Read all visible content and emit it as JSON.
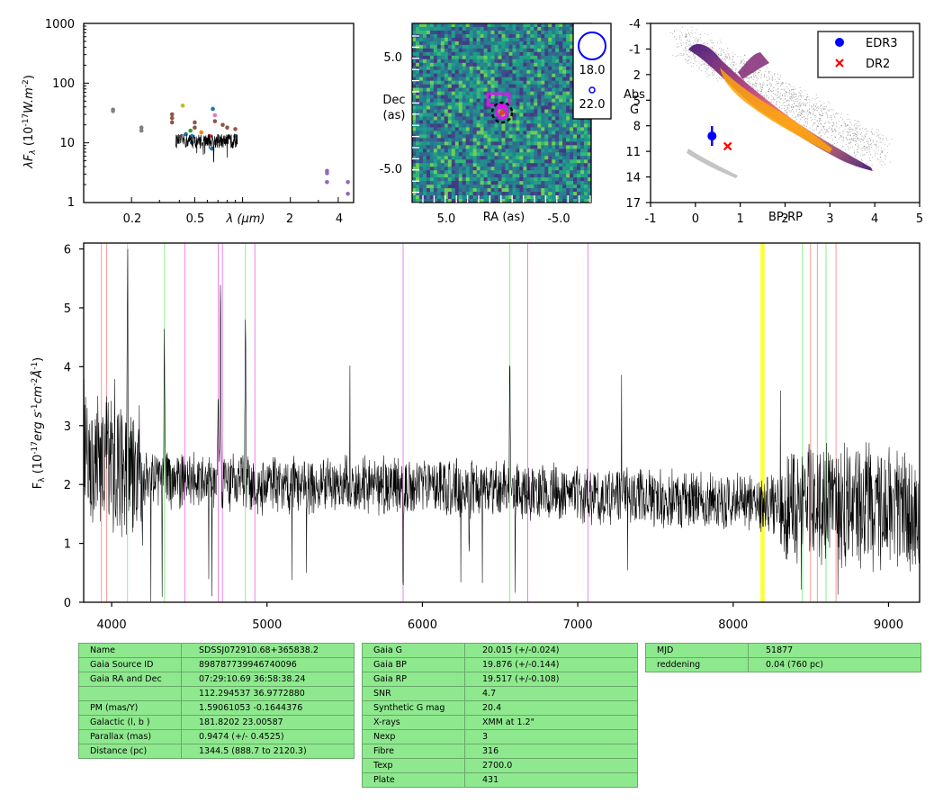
{
  "sed": {
    "ylabel_text": "λF",
    "ylabel_sub": "λ",
    "ylabel_units": " (10",
    "ylabel_exp": "-17",
    "ylabel_units2": "W.m",
    "ylabel_exp2": "-2",
    "ylabel_close": ")",
    "xlabel": "λ (μm)",
    "y_ticks": [
      "1",
      "10",
      "100",
      "1000"
    ],
    "x_ticks": [
      "0.2",
      "0.5",
      "2",
      "4"
    ]
  },
  "image_panel": {
    "ylabel_line1": "Dec",
    "ylabel_line2": "(as)",
    "xlabel": "RA (as)",
    "y_ticks": [
      "5.0",
      "-5.0"
    ],
    "x_ticks": [
      "5.0",
      "-5.0"
    ],
    "scale_labels": [
      "18.0",
      "22.0"
    ]
  },
  "hrd": {
    "ylabel_line1": "Abs",
    "ylabel_line2": "G",
    "xlabel": "BP-RP",
    "y_ticks": [
      "-4",
      "-1",
      "2",
      "5",
      "8",
      "11",
      "14",
      "17"
    ],
    "x_ticks": [
      "-1",
      "0",
      "1",
      "2",
      "3",
      "4",
      "5"
    ],
    "legend": [
      "EDR3",
      "DR2"
    ],
    "points": [
      {
        "name": "EDR3",
        "bp_rp": 0.37,
        "abs_g": 9.2,
        "color": "#0000ff"
      },
      {
        "name": "DR2",
        "bp_rp": 0.72,
        "abs_g": 10.4,
        "color": "#ff0000"
      }
    ]
  },
  "spectrum": {
    "ylabel_pre": "F",
    "ylabel_sub": "λ",
    "ylabel_mid": " (10",
    "ylabel_exp": "-17",
    "ylabel_unit1": "erg s",
    "ylabel_exp1": "-1",
    "ylabel_unit2": "cm",
    "ylabel_exp2": "-2",
    "ylabel_unit3": "Å",
    "ylabel_exp3": "-1",
    "ylabel_close": ")",
    "y_ticks": [
      "0",
      "1",
      "2",
      "3",
      "4",
      "5",
      "6"
    ],
    "x_ticks": [
      "4000",
      "5000",
      "6000",
      "7000",
      "8000",
      "9000"
    ]
  },
  "chart_data": [
    {
      "type": "scatter",
      "xscale": "log",
      "yscale": "log",
      "xlim": [
        0.1,
        5.0
      ],
      "ylim": [
        1,
        1000
      ],
      "xlabel": "λ (μm)",
      "ylabel": "λFλ (10^-17 W.m^-2)",
      "points": [
        {
          "x": 0.153,
          "y": 36,
          "color": "#808080"
        },
        {
          "x": 0.153,
          "y": 34,
          "color": "#808080"
        },
        {
          "x": 0.231,
          "y": 18,
          "color": "#808080"
        },
        {
          "x": 0.231,
          "y": 16,
          "color": "#808080"
        },
        {
          "x": 0.36,
          "y": 30,
          "color": "#8c564b"
        },
        {
          "x": 0.36,
          "y": 26,
          "color": "#8c564b"
        },
        {
          "x": 0.36,
          "y": 22,
          "color": "#8c564b"
        },
        {
          "x": 0.42,
          "y": 42,
          "color": "#bcbd22"
        },
        {
          "x": 0.44,
          "y": 14,
          "color": "#1f77b4"
        },
        {
          "x": 0.47,
          "y": 16,
          "color": "#2ca02c"
        },
        {
          "x": 0.48,
          "y": 13,
          "color": "#1f77b4"
        },
        {
          "x": 0.5,
          "y": 22,
          "color": "#8c564b"
        },
        {
          "x": 0.5,
          "y": 18,
          "color": "#8c564b"
        },
        {
          "x": 0.55,
          "y": 15,
          "color": "#ff7f0e"
        },
        {
          "x": 0.62,
          "y": 13,
          "color": "#d62728"
        },
        {
          "x": 0.65,
          "y": 37,
          "color": "#1f77b4"
        },
        {
          "x": 0.67,
          "y": 29,
          "color": "#e377c2"
        },
        {
          "x": 0.67,
          "y": 23,
          "color": "#8c564b"
        },
        {
          "x": 0.75,
          "y": 20,
          "color": "#8c564b"
        },
        {
          "x": 0.8,
          "y": 18,
          "color": "#8c564b"
        },
        {
          "x": 0.9,
          "y": 17,
          "color": "#8c564b"
        },
        {
          "x": 0.48,
          "y": 10,
          "color": "#1f77b4"
        },
        {
          "x": 0.64,
          "y": 8,
          "color": "#1f77b4"
        },
        {
          "x": 0.77,
          "y": 11,
          "color": "#1f77b4"
        },
        {
          "x": 0.9,
          "y": 13,
          "color": "#1f77b4"
        },
        {
          "x": 3.4,
          "y": 3.4,
          "color": "#9467bd"
        },
        {
          "x": 3.4,
          "y": 3.1,
          "color": "#9467bd"
        },
        {
          "x": 3.4,
          "y": 2.2,
          "color": "#9467bd"
        },
        {
          "x": 4.6,
          "y": 2.2,
          "color": "#9467bd"
        },
        {
          "x": 4.6,
          "y": 1.4,
          "color": "#9467bd"
        }
      ]
    },
    {
      "type": "line",
      "xlim": [
        3820,
        9200
      ],
      "ylim": [
        0,
        6.1
      ],
      "xlabel": "",
      "ylabel": "Fλ (10^-17 erg s^-1 cm^-2 Å^-1)",
      "continuum": [
        [
          3820,
          2.6
        ],
        [
          3900,
          2.5
        ],
        [
          4000,
          2.3
        ],
        [
          4200,
          2.15
        ],
        [
          4500,
          2.05
        ],
        [
          5000,
          2.0
        ],
        [
          5500,
          2.0
        ],
        [
          6000,
          1.95
        ],
        [
          6500,
          1.9
        ],
        [
          7000,
          1.85
        ],
        [
          7500,
          1.75
        ],
        [
          8000,
          1.7
        ],
        [
          8500,
          1.65
        ],
        [
          9000,
          1.6
        ],
        [
          9200,
          1.55
        ]
      ],
      "emission": [
        {
          "x": 4102,
          "peak": 6.2
        },
        {
          "x": 4340,
          "peak": 5.5
        },
        {
          "x": 4686,
          "peak": 4.2
        },
        {
          "x": 4700,
          "peak": 6.0
        },
        {
          "x": 4861,
          "peak": 5.4
        },
        {
          "x": 5876,
          "peak": 0.1
        },
        {
          "x": 6563,
          "peak": 4.6
        },
        {
          "x": 6300,
          "peak": 0.8
        }
      ],
      "lines": [
        {
          "x": 3934,
          "color": "#ff9999"
        },
        {
          "x": 3968,
          "color": "#ff9999"
        },
        {
          "x": 4102,
          "color": "#90ee90"
        },
        {
          "x": 4340,
          "color": "#90ee90"
        },
        {
          "x": 4471,
          "color": "#ee82ee"
        },
        {
          "x": 4686,
          "color": "#ee82ee"
        },
        {
          "x": 4713,
          "color": "#ee82ee"
        },
        {
          "x": 4861,
          "color": "#90ee90"
        },
        {
          "x": 4922,
          "color": "#ee82ee"
        },
        {
          "x": 5876,
          "color": "#ee82ee"
        },
        {
          "x": 6563,
          "color": "#90ee90"
        },
        {
          "x": 6678,
          "color": "#ee82ee"
        },
        {
          "x": 7065,
          "color": "#ee82ee"
        },
        {
          "x": 8183,
          "color": "#ffff33"
        },
        {
          "x": 8195,
          "color": "#ffff33"
        },
        {
          "x": 8446,
          "color": "#90ee90"
        },
        {
          "x": 8498,
          "color": "#ff9999"
        },
        {
          "x": 8542,
          "color": "#ff9999"
        },
        {
          "x": 8598,
          "color": "#90ee90"
        },
        {
          "x": 8662,
          "color": "#ff9999"
        }
      ]
    }
  ],
  "tables": [
    {
      "rows": [
        [
          "Name",
          "SDSSJ072910.68+365838.2"
        ],
        [
          "Gaia Source ID",
          "898787739946740096"
        ],
        [
          "Gaia RA and Dec",
          "07:29:10.69    36:58:38.24"
        ],
        [
          "",
          "112.294537    36.9772880"
        ],
        [
          "PM (mas/Y)",
          "1.59061053    -0.1644376"
        ],
        [
          "Galactic (l, b )",
          "181.8202    23.00587"
        ],
        [
          "Parallax (mas)",
          "0.9474 (+/- 0.4525)"
        ],
        [
          "Distance (pc)",
          "1344.5 (888.7 to 2120.3)"
        ]
      ]
    },
    {
      "rows": [
        [
          "Gaia G",
          "20.015 (+/-0.024)"
        ],
        [
          "Gaia BP",
          "19.876 (+/-0.144)"
        ],
        [
          "Gaia RP",
          "19.517 (+/-0.108)"
        ],
        [
          "SNR",
          "4.7"
        ],
        [
          "Synthetic G mag",
          "20.4"
        ],
        [
          "X-rays",
          "XMM at 1.2\""
        ],
        [
          "Nexp",
          "3"
        ],
        [
          "Fibre",
          "316"
        ],
        [
          "Texp",
          "2700.0"
        ],
        [
          "Plate",
          "431"
        ]
      ]
    },
    {
      "rows": [
        [
          "MJD",
          "51877"
        ],
        [
          "reddening",
          "0.04 (760 pc)"
        ]
      ]
    }
  ]
}
